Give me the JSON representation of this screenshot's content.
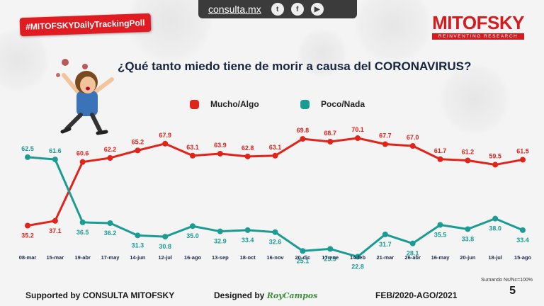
{
  "header": {
    "hashtag": "#MITOFSKYDailyTrackingPoll",
    "site": "consulta.mx",
    "social": [
      {
        "icon": "twitter-icon",
        "glyph": "t"
      },
      {
        "icon": "facebook-icon",
        "glyph": "f"
      },
      {
        "icon": "youtube-icon",
        "glyph": "▶"
      }
    ],
    "logo_name": "MITOFSKY",
    "logo_tagline": "REINVENTING RESEARCH"
  },
  "chart_data": {
    "type": "line",
    "title": "¿Qué tanto miedo tiene de morir a causa del CORONAVIRUS?",
    "categories": [
      "08-mar",
      "15-mar",
      "19-abr",
      "17-may",
      "14-jun",
      "12-jul",
      "16-ago",
      "13-sep",
      "18-oct",
      "16-nov",
      "20-dic",
      "17-ene",
      "14-feb",
      "21-mar",
      "26-abr",
      "16-may",
      "20-jun",
      "18-jul",
      "15-ago"
    ],
    "series": [
      {
        "name": "Mucho/Algo",
        "color": "#e2231a",
        "values": [
          35.2,
          37.1,
          60.6,
          62.2,
          65.2,
          67.9,
          63.1,
          63.9,
          62.8,
          63.1,
          69.8,
          68.7,
          70.1,
          67.7,
          67.0,
          61.7,
          61.2,
          59.5,
          61.5
        ]
      },
      {
        "name": "Poco/Nada",
        "color": "#1a9b93",
        "values": [
          62.5,
          61.6,
          36.5,
          36.2,
          31.3,
          30.8,
          35.0,
          32.9,
          33.4,
          32.6,
          25.1,
          25.9,
          22.8,
          31.7,
          28.1,
          35.5,
          33.8,
          38.0,
          33.4
        ]
      }
    ],
    "ylim": [
      15,
      80
    ],
    "xlabel": "",
    "ylabel": "",
    "grid": false,
    "legend": "top"
  },
  "footer": {
    "supported": "Supported by   CONSULTA   MITOFSKY",
    "designed_prefix": "Designed by",
    "designer": "RoyCampos",
    "period": "FEB/2020-AGO/2021",
    "note": "Sumando Ns/Nc=100%",
    "page": "5"
  }
}
